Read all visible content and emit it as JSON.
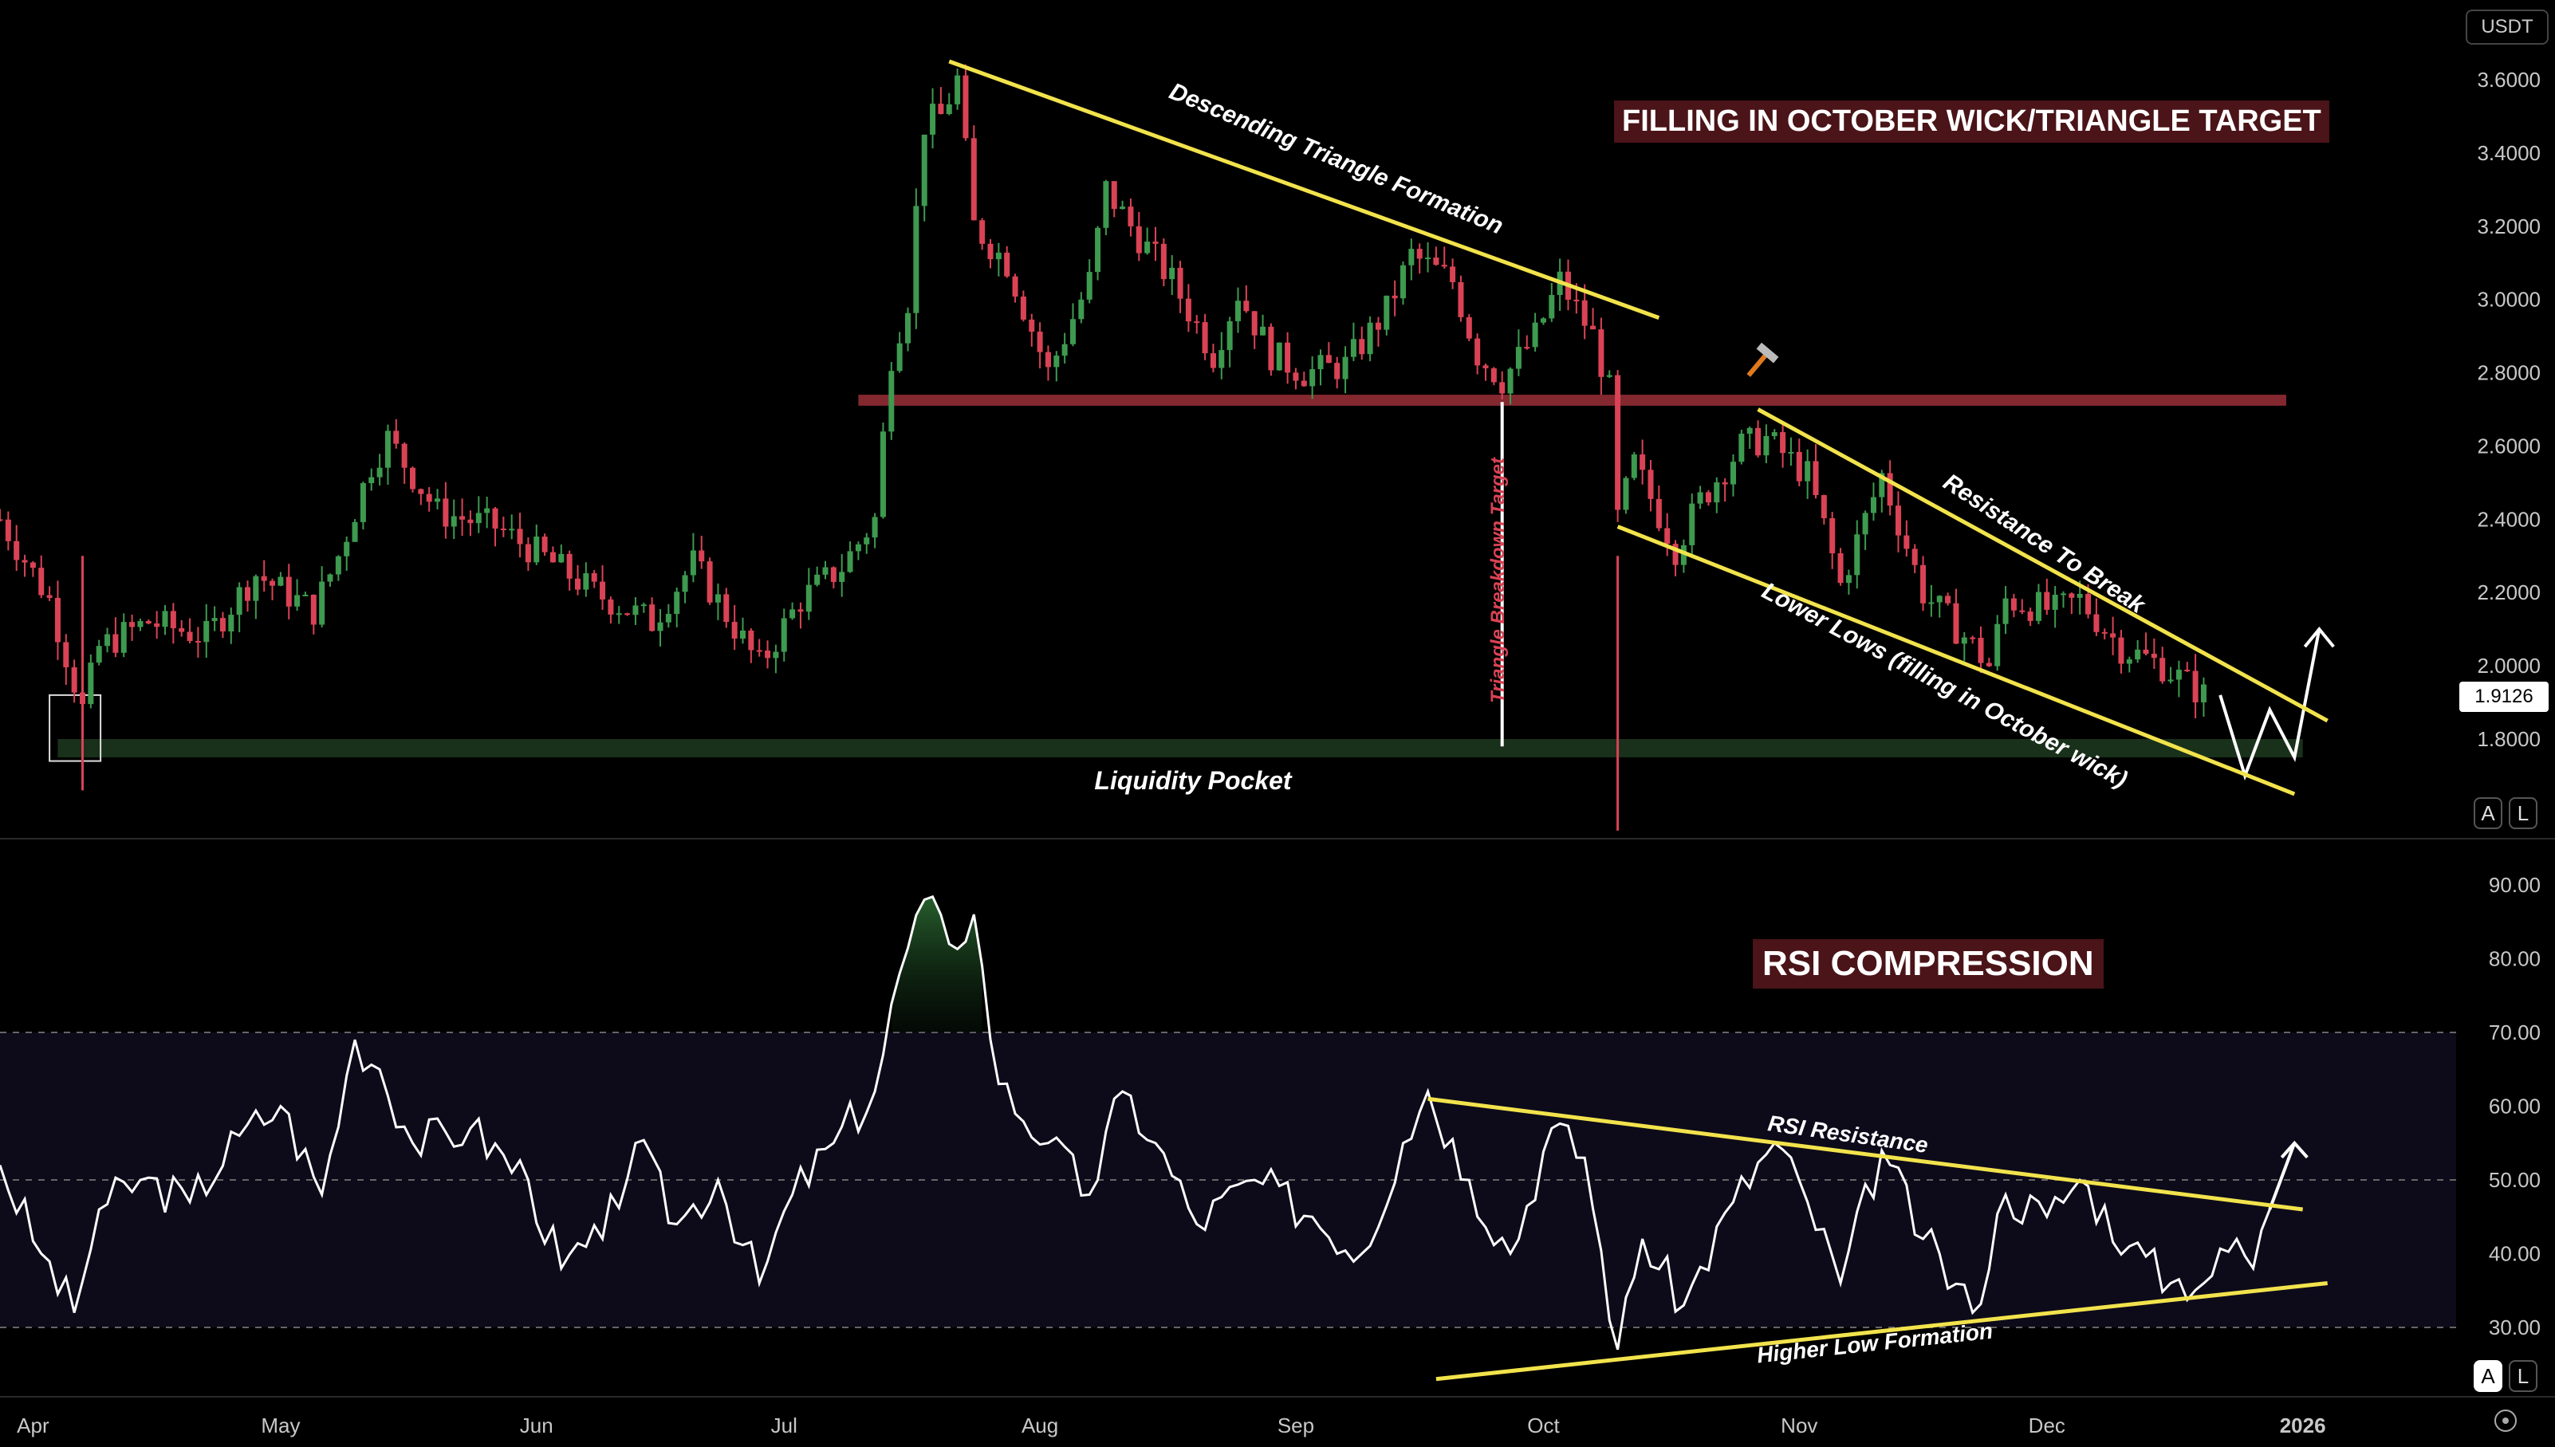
{
  "currency": "USDT",
  "last_price": "1.9126",
  "annotations": {
    "title_main": "FILLING IN OCTOBER WICK/TRIANGLE TARGET",
    "title_rsi": "RSI COMPRESSION",
    "descending_triangle": "Descending Triangle Formation",
    "resistance_to_break": "Resistance To Break",
    "lower_lows": "Lower Lows (filling in October wick)",
    "triangle_breakdown": "Triangle Breakdown Target",
    "liquidity_pocket": "Liquidity Pocket",
    "rsi_resistance": "RSI Resistance",
    "higher_low": "Higher Low Formation"
  },
  "axis_buttons": {
    "auto": "A",
    "log": "L",
    "auto_rsi": "A",
    "log_rsi": "L"
  },
  "colors": {
    "up": "#3d9a4f",
    "down": "#d94355",
    "trendline": "#f2e34c",
    "zone_red": "#8b2a33",
    "zone_green": "#1d3a1f",
    "rsi_line": "#ffffff",
    "title_bg": "#4a1418"
  },
  "chart_data": [
    {
      "type": "candlestick",
      "title": "FILLING IN OCTOBER WICK/TRIANGLE TARGET",
      "currency": "USDT",
      "ylim": [
        1.6,
        3.7
      ],
      "y_ticks": [
        "3.6000",
        "3.4000",
        "3.2000",
        "3.0000",
        "2.8000",
        "2.6000",
        "2.4000",
        "2.2000",
        "2.0000",
        "1.8000"
      ],
      "x_ticks": [
        "Apr",
        "May",
        "Jun",
        "Jul",
        "Aug",
        "Sep",
        "Oct",
        "Nov",
        "Dec",
        "2026"
      ],
      "price_path": [
        [
          "2025-03-28",
          2.4
        ],
        [
          "2025-04-03",
          2.18
        ],
        [
          "2025-04-07",
          1.88
        ],
        [
          "2025-04-09",
          2.05
        ],
        [
          "2025-04-15",
          2.12
        ],
        [
          "2025-04-22",
          2.08
        ],
        [
          "2025-04-28",
          2.25
        ],
        [
          "2025-05-05",
          2.15
        ],
        [
          "2025-05-08",
          2.3
        ],
        [
          "2025-05-12",
          2.55
        ],
        [
          "2025-05-14",
          2.62
        ],
        [
          "2025-05-20",
          2.42
        ],
        [
          "2025-05-27",
          2.38
        ],
        [
          "2025-06-03",
          2.28
        ],
        [
          "2025-06-08",
          2.2
        ],
        [
          "2025-06-15",
          2.12
        ],
        [
          "2025-06-20",
          2.28
        ],
        [
          "2025-06-28",
          2.0
        ],
        [
          "2025-07-03",
          2.18
        ],
        [
          "2025-07-08",
          2.27
        ],
        [
          "2025-07-12",
          2.4
        ],
        [
          "2025-07-14",
          2.85
        ],
        [
          "2025-07-16",
          3.0
        ],
        [
          "2025-07-18",
          3.48
        ],
        [
          "2025-07-20",
          3.5
        ],
        [
          "2025-07-22",
          3.6
        ],
        [
          "2025-07-24",
          3.2
        ],
        [
          "2025-07-28",
          3.1
        ],
        [
          "2025-08-02",
          2.8
        ],
        [
          "2025-08-07",
          3.05
        ],
        [
          "2025-08-09",
          3.3
        ],
        [
          "2025-08-12",
          3.2
        ],
        [
          "2025-08-17",
          3.05
        ],
        [
          "2025-08-22",
          2.85
        ],
        [
          "2025-08-25",
          3.02
        ],
        [
          "2025-08-29",
          2.85
        ],
        [
          "2025-09-02",
          2.8
        ],
        [
          "2025-09-07",
          2.82
        ],
        [
          "2025-09-12",
          2.97
        ],
        [
          "2025-09-15",
          3.12
        ],
        [
          "2025-09-20",
          3.05
        ],
        [
          "2025-09-23",
          2.85
        ],
        [
          "2025-09-26",
          2.78
        ],
        [
          "2025-09-30",
          2.9
        ],
        [
          "2025-10-03",
          3.05
        ],
        [
          "2025-10-07",
          2.9
        ],
        [
          "2025-10-09",
          2.75
        ],
        [
          "2025-10-10",
          2.4
        ],
        [
          "2025-10-12",
          2.55
        ],
        [
          "2025-10-17",
          2.32
        ],
        [
          "2025-10-20",
          2.45
        ],
        [
          "2025-10-25",
          2.6
        ],
        [
          "2025-10-28",
          2.62
        ],
        [
          "2025-11-02",
          2.52
        ],
        [
          "2025-11-04",
          2.38
        ],
        [
          "2025-11-06",
          2.22
        ],
        [
          "2025-11-09",
          2.4
        ],
        [
          "2025-11-11",
          2.52
        ],
        [
          "2025-11-16",
          2.2
        ],
        [
          "2025-11-21",
          2.08
        ],
        [
          "2025-11-24",
          2.0
        ],
        [
          "2025-11-26",
          2.18
        ],
        [
          "2025-12-02",
          2.15
        ],
        [
          "2025-12-05",
          2.18
        ],
        [
          "2025-12-10",
          2.05
        ],
        [
          "2025-12-15",
          2.0
        ],
        [
          "2025-12-20",
          1.92
        ]
      ],
      "wicks": [
        {
          "date": "2025-04-07",
          "low": 1.66
        },
        {
          "date": "2025-10-10",
          "low": 1.55
        }
      ],
      "projection": [
        [
          "2025-12-22",
          1.92
        ],
        [
          "2025-12-25",
          1.7
        ],
        [
          "2025-12-28",
          1.88
        ],
        [
          "2025-12-31",
          1.75
        ],
        [
          "2026-01-03",
          2.1
        ]
      ],
      "zones": [
        {
          "name": "resistance band",
          "y": [
            2.71,
            2.74
          ],
          "from": "2025-07-10",
          "to": "2025-12-30"
        },
        {
          "name": "Liquidity Pocket",
          "y": [
            1.75,
            1.8
          ],
          "from": "2025-04-04",
          "to": "2026-01-01"
        }
      ],
      "trendlines": [
        {
          "name": "Descending Triangle Formation",
          "points": [
            [
              "2025-07-21",
              3.65
            ],
            [
              "2025-10-15",
              2.95
            ]
          ]
        },
        {
          "name": "Resistance To Break",
          "points": [
            [
              "2025-10-27",
              2.7
            ],
            [
              "2026-01-04",
              1.85
            ]
          ]
        },
        {
          "name": "Lower Lows (filling in October wick)",
          "points": [
            [
              "2025-10-10",
              2.38
            ],
            [
              "2025-12-31",
              1.65
            ]
          ]
        }
      ],
      "breakdown_target": {
        "date": "2025-09-26",
        "from": 2.72,
        "to": 1.78
      }
    },
    {
      "type": "line",
      "title": "RSI COMPRESSION",
      "ylim": [
        25,
        95
      ],
      "y_ticks": [
        "90.00",
        "80.00",
        "70.00",
        "60.00",
        "50.00",
        "40.00",
        "30.00"
      ],
      "bands": [
        30,
        50,
        70
      ],
      "x_ticks": [
        "Apr",
        "May",
        "Jun",
        "Jul",
        "Aug",
        "Sep",
        "Oct",
        "Nov",
        "Dec",
        "2026"
      ],
      "series": [
        {
          "values": [
            [
              "2025-03-28",
              52
            ],
            [
              "2025-04-02",
              40
            ],
            [
              "2025-04-06",
              32
            ],
            [
              "2025-04-09",
              46
            ],
            [
              "2025-04-14",
              50
            ],
            [
              "2025-04-20",
              47
            ],
            [
              "2025-04-26",
              56
            ],
            [
              "2025-05-01",
              60
            ],
            [
              "2025-05-06",
              48
            ],
            [
              "2025-05-10",
              69
            ],
            [
              "2025-05-13",
              65
            ],
            [
              "2025-05-17",
              55
            ],
            [
              "2025-05-24",
              57
            ],
            [
              "2025-05-31",
              50
            ],
            [
              "2025-06-04",
              38
            ],
            [
              "2025-06-09",
              42
            ],
            [
              "2025-06-13",
              55
            ],
            [
              "2025-06-18",
              44
            ],
            [
              "2025-06-23",
              50
            ],
            [
              "2025-06-28",
              36
            ],
            [
              "2025-07-02",
              48
            ],
            [
              "2025-07-07",
              55
            ],
            [
              "2025-07-12",
              62
            ],
            [
              "2025-07-15",
              78
            ],
            [
              "2025-07-18",
              88
            ],
            [
              "2025-07-21",
              82
            ],
            [
              "2025-07-24",
              86
            ],
            [
              "2025-07-27",
              63
            ],
            [
              "2025-08-02",
              55
            ],
            [
              "2025-08-07",
              48
            ],
            [
              "2025-08-11",
              62
            ],
            [
              "2025-08-15",
              55
            ],
            [
              "2025-08-20",
              44
            ],
            [
              "2025-08-27",
              50
            ],
            [
              "2025-09-03",
              45
            ],
            [
              "2025-09-09",
              40
            ],
            [
              "2025-09-14",
              55
            ],
            [
              "2025-09-17",
              62
            ],
            [
              "2025-09-22",
              50
            ],
            [
              "2025-09-27",
              40
            ],
            [
              "2025-10-02",
              57
            ],
            [
              "2025-10-06",
              53
            ],
            [
              "2025-10-10",
              27
            ],
            [
              "2025-10-13",
              42
            ],
            [
              "2025-10-18",
              33
            ],
            [
              "2025-10-24",
              47
            ],
            [
              "2025-10-29",
              55
            ],
            [
              "2025-11-02",
              47
            ],
            [
              "2025-11-06",
              36
            ],
            [
              "2025-11-11",
              54
            ],
            [
              "2025-11-16",
              42
            ],
            [
              "2025-11-22",
              32
            ],
            [
              "2025-11-26",
              48
            ],
            [
              "2025-12-01",
              45
            ],
            [
              "2025-12-05",
              50
            ],
            [
              "2025-12-11",
              41
            ],
            [
              "2025-12-16",
              36
            ],
            [
              "2025-12-21",
              37
            ],
            [
              "2025-12-24",
              42
            ],
            [
              "2025-12-26",
              38
            ],
            [
              "2025-12-28",
              46
            ]
          ]
        }
      ],
      "projection": [
        [
          "2025-12-28",
          46
        ],
        [
          "2025-12-31",
          55
        ]
      ],
      "trendlines": [
        {
          "name": "RSI Resistance",
          "points": [
            [
              "2025-09-17",
              61
            ],
            [
              "2026-01-01",
              46
            ]
          ]
        },
        {
          "name": "Higher Low Formation",
          "points": [
            [
              "2025-09-18",
              23
            ],
            [
              "2026-01-04",
              36
            ]
          ]
        }
      ]
    }
  ]
}
